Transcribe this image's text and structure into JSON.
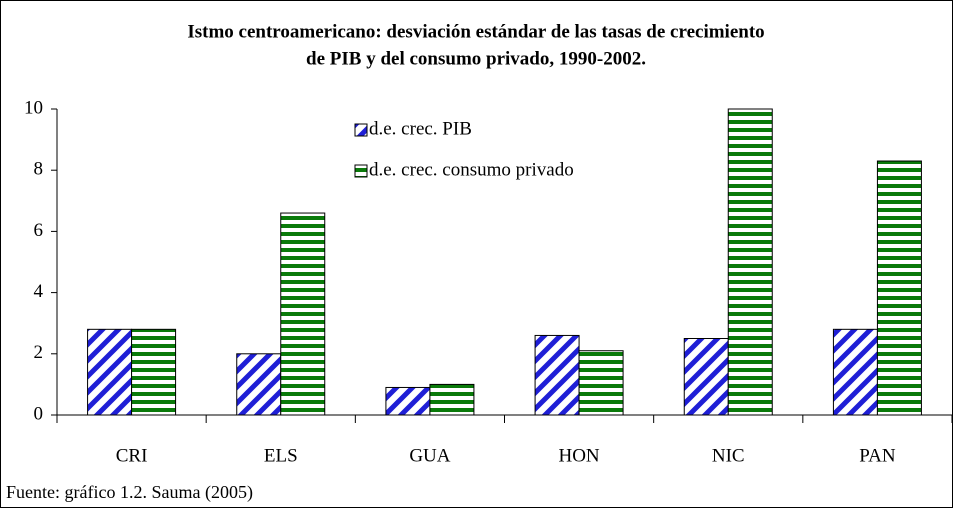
{
  "chart_data": {
    "type": "bar",
    "title": [
      "Istmo centroamericano: desviación estándar de las tasas de crecimiento",
      "de PIB y del consumo privado, 1990-2002."
    ],
    "categories": [
      "CRI",
      "ELS",
      "GUA",
      "HON",
      "NIC",
      "PAN"
    ],
    "series": [
      {
        "name": "d.e. crec. PIB",
        "color": "#1f1fd6",
        "pattern": "diagonal",
        "values": [
          2.8,
          2.0,
          0.9,
          2.6,
          2.5,
          2.8
        ]
      },
      {
        "name": "d.e. crec. consumo privado",
        "color": "#0a7a0a",
        "pattern": "horizontal",
        "values": [
          2.8,
          6.6,
          1.0,
          2.1,
          10.0,
          8.3
        ]
      }
    ],
    "ylim": [
      0,
      10
    ],
    "yticks": [
      0,
      2,
      4,
      6,
      8,
      10
    ],
    "grid": false,
    "source": "Fuente: gráfico 1.2. Sauma (2005)"
  }
}
